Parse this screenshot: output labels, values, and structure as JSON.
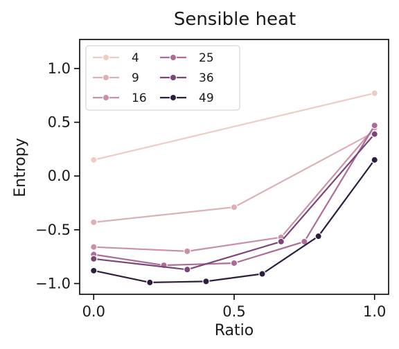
{
  "chart_data": {
    "type": "line",
    "title": "Sensible heat",
    "xlabel": "Ratio",
    "ylabel": "Entropy",
    "xlim": [
      -0.05,
      1.05
    ],
    "ylim": [
      -1.1,
      1.27
    ],
    "xticks": [
      0.0,
      0.5,
      1.0
    ],
    "xtick_labels": [
      "0.0",
      "0.5",
      "1.0"
    ],
    "yticks": [
      -1.0,
      -0.5,
      0.0,
      0.5,
      1.0
    ],
    "ytick_labels": [
      "−1.0",
      "−0.5",
      "0.0",
      "0.5",
      "1.0"
    ],
    "grid": false,
    "legend": {
      "placement": "top-left",
      "columns": 2
    },
    "series": [
      {
        "name": "4",
        "color": "#ebcdc6",
        "x": [
          0.0,
          1.0
        ],
        "y": [
          0.15,
          0.77
        ]
      },
      {
        "name": "9",
        "color": "#ddb0b5",
        "x": [
          0.0,
          0.5,
          1.0
        ],
        "y": [
          -0.43,
          -0.29,
          0.41
        ]
      },
      {
        "name": "16",
        "color": "#cb8fa6",
        "x": [
          0.0,
          0.333,
          0.667,
          1.0
        ],
        "y": [
          -0.66,
          -0.7,
          -0.57,
          0.45
        ]
      },
      {
        "name": "25",
        "color": "#ad6c96",
        "x": [
          0.0,
          0.25,
          0.5,
          0.75,
          1.0
        ],
        "y": [
          -0.73,
          -0.83,
          -0.81,
          -0.61,
          0.47
        ]
      },
      {
        "name": "36",
        "color": "#7a4577",
        "x": [
          0.0,
          0.333,
          0.667,
          1.0
        ],
        "y": [
          -0.77,
          -0.87,
          -0.61,
          0.39
        ]
      },
      {
        "name": "49",
        "color": "#2d1e3e",
        "x": [
          0.0,
          0.2,
          0.4,
          0.6,
          0.8,
          1.0
        ],
        "y": [
          -0.88,
          -0.99,
          -0.98,
          -0.91,
          -0.56,
          0.15
        ]
      }
    ]
  }
}
